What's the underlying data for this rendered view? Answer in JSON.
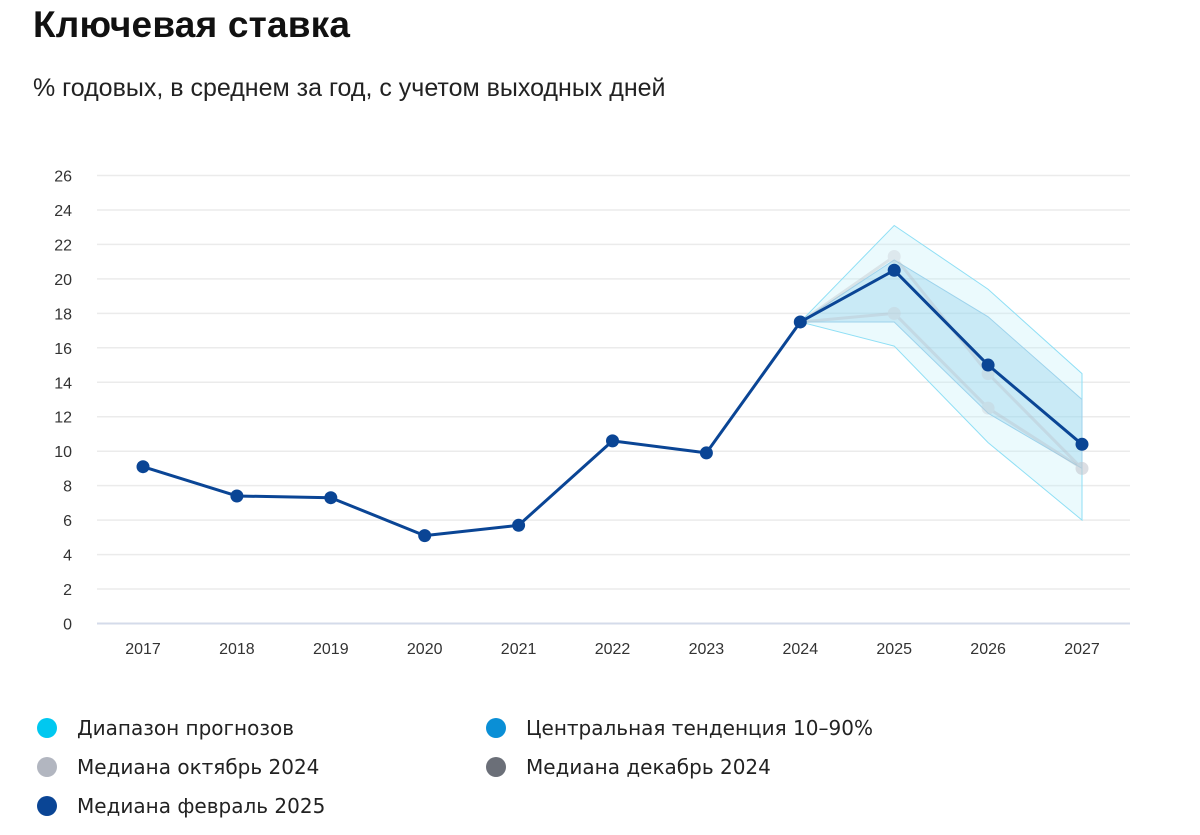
{
  "header": {
    "title": "Ключевая ставка",
    "subtitle": "% годовых, в среднем за год, с учетом выходных дней"
  },
  "chart_data": {
    "type": "line",
    "title": "Ключевая ставка",
    "subtitle": "% годовых, в среднем за год, с учетом выходных дней",
    "xlabel": "",
    "ylabel": "",
    "categories": [
      "2017",
      "2018",
      "2019",
      "2020",
      "2021",
      "2022",
      "2023",
      "2024",
      "2025",
      "2026",
      "2027"
    ],
    "ylim": [
      0,
      26
    ],
    "yticks": [
      0,
      2,
      4,
      6,
      8,
      10,
      12,
      14,
      16,
      18,
      20,
      22,
      24,
      26
    ],
    "grid": true,
    "legend_position": "bottom",
    "bands": [
      {
        "name": "Диапазон прогнозов",
        "color": "#00c8f0",
        "x": [
          "2024",
          "2025",
          "2026",
          "2027"
        ],
        "upper": [
          17.5,
          23.1,
          19.4,
          14.5
        ],
        "lower": [
          17.5,
          16.1,
          10.5,
          6.0
        ]
      },
      {
        "name": "Центральная тенденция 10-90%",
        "color": "#0a8fd6",
        "x": [
          "2024",
          "2025",
          "2026",
          "2027"
        ],
        "upper": [
          17.5,
          21.1,
          17.8,
          13.0
        ],
        "lower": [
          17.5,
          17.5,
          12.2,
          9.0
        ]
      }
    ],
    "series": [
      {
        "name": "Медиана октябрь 2024",
        "color": "#b2b6c0",
        "x": [
          "2024",
          "2025",
          "2026",
          "2027"
        ],
        "values": [
          17.5,
          18.0,
          12.5,
          9.0
        ]
      },
      {
        "name": "Медиана декабрь 2024",
        "color": "#6b6f78",
        "x": [
          "2024",
          "2025",
          "2026",
          "2027"
        ],
        "values": [
          17.5,
          21.3,
          14.5,
          9.0
        ]
      },
      {
        "name": "Медиана февраль 2025",
        "color": "#0a4595",
        "x": [
          "2017",
          "2018",
          "2019",
          "2020",
          "2021",
          "2022",
          "2023",
          "2024",
          "2025",
          "2026",
          "2027"
        ],
        "values": [
          9.1,
          7.4,
          7.3,
          5.1,
          5.7,
          10.6,
          9.9,
          17.5,
          20.5,
          15.0,
          10.4
        ]
      }
    ]
  },
  "legend": {
    "items": [
      {
        "label": "Диапазон прогнозов",
        "color": "#00c8f0"
      },
      {
        "label": "Центральная тенденция 10–90%",
        "color": "#0a8fd6"
      },
      {
        "label": "Медиана октябрь 2024",
        "color": "#b2b6c0"
      },
      {
        "label": "Медиана декабрь 2024",
        "color": "#6b6f78"
      },
      {
        "label": "Медиана февраль 2025",
        "color": "#0a4595"
      }
    ]
  }
}
